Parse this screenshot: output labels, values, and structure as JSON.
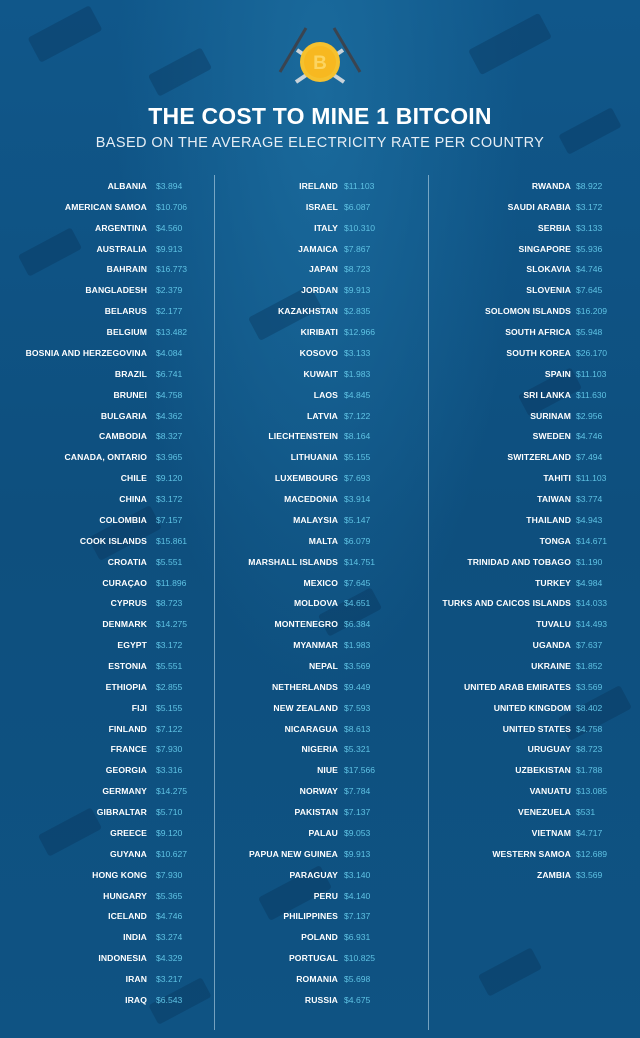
{
  "header": {
    "title": "THE COST TO MINE 1 BITCOIN",
    "subtitle": "BASED ON THE AVERAGE ELECTRICITY RATE PER COUNTRY",
    "icon": "bitcoin-pickaxe-icon"
  },
  "colors": {
    "background": "#0f5282",
    "country_text": "#ffffff",
    "value_text": "#5fc3e4",
    "coin": "#f5c12e"
  },
  "chart_data": {
    "type": "table",
    "title": "THE COST TO MINE 1 BITCOIN",
    "subtitle": "BASED ON THE AVERAGE ELECTRICITY RATE PER COUNTRY",
    "columns": [
      [
        [
          "ALBANIA",
          "$3.894"
        ],
        [
          "AMERICAN SAMOA",
          "$10.706"
        ],
        [
          "ARGENTINA",
          "$4.560"
        ],
        [
          "AUSTRALIA",
          "$9.913"
        ],
        [
          "BAHRAIN",
          "$16.773"
        ],
        [
          "BANGLADESH",
          "$2.379"
        ],
        [
          "BELARUS",
          "$2.177"
        ],
        [
          "BELGIUM",
          "$13.482"
        ],
        [
          "BOSNIA AND HERZEGOVINA",
          "$4.084"
        ],
        [
          "BRAZIL",
          "$6.741"
        ],
        [
          "BRUNEI",
          "$4.758"
        ],
        [
          "BULGARIA",
          "$4.362"
        ],
        [
          "CAMBODIA",
          "$8.327"
        ],
        [
          "CANADA, ONTARIO",
          "$3.965"
        ],
        [
          "CHILE",
          "$9.120"
        ],
        [
          "CHINA",
          "$3.172"
        ],
        [
          "COLOMBIA",
          "$7.157"
        ],
        [
          "COOK ISLANDS",
          "$15.861"
        ],
        [
          "CROATIA",
          "$5.551"
        ],
        [
          "CURAÇAO",
          "$11.896"
        ],
        [
          "CYPRUS",
          "$8.723"
        ],
        [
          "DENMARK",
          "$14.275"
        ],
        [
          "EGYPT",
          "$3.172"
        ],
        [
          "ESTONIA",
          "$5.551"
        ],
        [
          "ETHIOPIA",
          "$2.855"
        ],
        [
          "FIJI",
          "$5.155"
        ],
        [
          "FINLAND",
          "$7.122"
        ],
        [
          "FRANCE",
          "$7.930"
        ],
        [
          "GEORGIA",
          "$3.316"
        ],
        [
          "GERMANY",
          "$14.275"
        ],
        [
          "GIBRALTAR",
          "$5.710"
        ],
        [
          "GREECE",
          "$9.120"
        ],
        [
          "GUYANA",
          "$10.627"
        ],
        [
          "HONG KONG",
          "$7.930"
        ],
        [
          "HUNGARY",
          "$5.365"
        ],
        [
          "ICELAND",
          "$4.746"
        ],
        [
          "INDIA",
          "$3.274"
        ],
        [
          "INDONESIA",
          "$4.329"
        ],
        [
          "IRAN",
          "$3.217"
        ],
        [
          "IRAQ",
          "$6.543"
        ]
      ],
      [
        [
          "IRELAND",
          "$11.103"
        ],
        [
          "ISRAEL",
          "$6.087"
        ],
        [
          "ITALY",
          "$10.310"
        ],
        [
          "JAMAICA",
          "$7.867"
        ],
        [
          "JAPAN",
          "$8.723"
        ],
        [
          "JORDAN",
          "$9.913"
        ],
        [
          "KAZAKHSTAN",
          "$2.835"
        ],
        [
          "KIRIBATI",
          "$12.966"
        ],
        [
          "KOSOVO",
          "$3.133"
        ],
        [
          "KUWAIT",
          "$1.983"
        ],
        [
          "LAOS",
          "$4.845"
        ],
        [
          "LATVIA",
          "$7.122"
        ],
        [
          "LIECHTENSTEIN",
          "$8.164"
        ],
        [
          "LITHUANIA",
          "$5.155"
        ],
        [
          "LUXEMBOURG",
          "$7.693"
        ],
        [
          "MACEDONIA",
          "$3.914"
        ],
        [
          "MALAYSIA",
          "$5.147"
        ],
        [
          "MALTA",
          "$6.079"
        ],
        [
          "MARSHALL ISLANDS",
          "$14.751"
        ],
        [
          "MEXICO",
          "$7.645"
        ],
        [
          "MOLDOVA",
          "$4.651"
        ],
        [
          "MONTENEGRO",
          "$6.384"
        ],
        [
          "MYANMAR",
          "$1.983"
        ],
        [
          "NEPAL",
          "$3.569"
        ],
        [
          "NETHERLANDS",
          "$9.449"
        ],
        [
          "NEW ZEALAND",
          "$7.593"
        ],
        [
          "NICARAGUA",
          "$8.613"
        ],
        [
          "NIGERIA",
          "$5.321"
        ],
        [
          "NIUE",
          "$17.566"
        ],
        [
          "NORWAY",
          "$7.784"
        ],
        [
          "PAKISTAN",
          "$7.137"
        ],
        [
          "PALAU",
          "$9.053"
        ],
        [
          "PAPUA NEW GUINEA",
          "$9.913"
        ],
        [
          "PARAGUAY",
          "$3.140"
        ],
        [
          "PERU",
          "$4.140"
        ],
        [
          "PHILIPPINES",
          "$7.137"
        ],
        [
          "POLAND",
          "$6.931"
        ],
        [
          "PORTUGAL",
          "$10.825"
        ],
        [
          "ROMANIA",
          "$5.698"
        ],
        [
          "RUSSIA",
          "$4.675"
        ]
      ],
      [
        [
          "RWANDA",
          "$8.922"
        ],
        [
          "SAUDI ARABIA",
          "$3.172"
        ],
        [
          "SERBIA",
          "$3.133"
        ],
        [
          "SINGAPORE",
          "$5.936"
        ],
        [
          "SLOKAVIA",
          "$4.746"
        ],
        [
          "SLOVENIA",
          "$7.645"
        ],
        [
          "SOLOMON ISLANDS",
          "$16.209"
        ],
        [
          "SOUTH AFRICA",
          "$5.948"
        ],
        [
          "SOUTH KOREA",
          "$26.170"
        ],
        [
          "SPAIN",
          "$11.103"
        ],
        [
          "SRI LANKA",
          "$11.630"
        ],
        [
          "SURINAM",
          "$2.956"
        ],
        [
          "SWEDEN",
          "$4.746"
        ],
        [
          "SWITZERLAND",
          "$7.494"
        ],
        [
          "TAHITI",
          "$11.103"
        ],
        [
          "TAIWAN",
          "$3.774"
        ],
        [
          "THAILAND",
          "$4.943"
        ],
        [
          "TONGA",
          "$14.671"
        ],
        [
          "TRINIDAD AND TOBAGO",
          "$1.190"
        ],
        [
          "TURKEY",
          "$4.984"
        ],
        [
          "TURKS AND CAICOS ISLANDS",
          "$14.033"
        ],
        [
          "TUVALU",
          "$14.493"
        ],
        [
          "UGANDA",
          "$7.637"
        ],
        [
          "UKRAINE",
          "$1.852"
        ],
        [
          "UNITED ARAB EMIRATES",
          "$3.569"
        ],
        [
          "UNITED KINGDOM",
          "$8.402"
        ],
        [
          "UNITED STATES",
          "$4.758"
        ],
        [
          "URUGUAY",
          "$8.723"
        ],
        [
          "UZBEKISTAN",
          "$1.788"
        ],
        [
          "VANUATU",
          "$13.085"
        ],
        [
          "VENEZUELA",
          "$531"
        ],
        [
          "VIETNAM",
          "$4.717"
        ],
        [
          "WESTERN SAMOA",
          "$12.689"
        ],
        [
          "ZAMBIA",
          "$3.569"
        ]
      ]
    ]
  }
}
